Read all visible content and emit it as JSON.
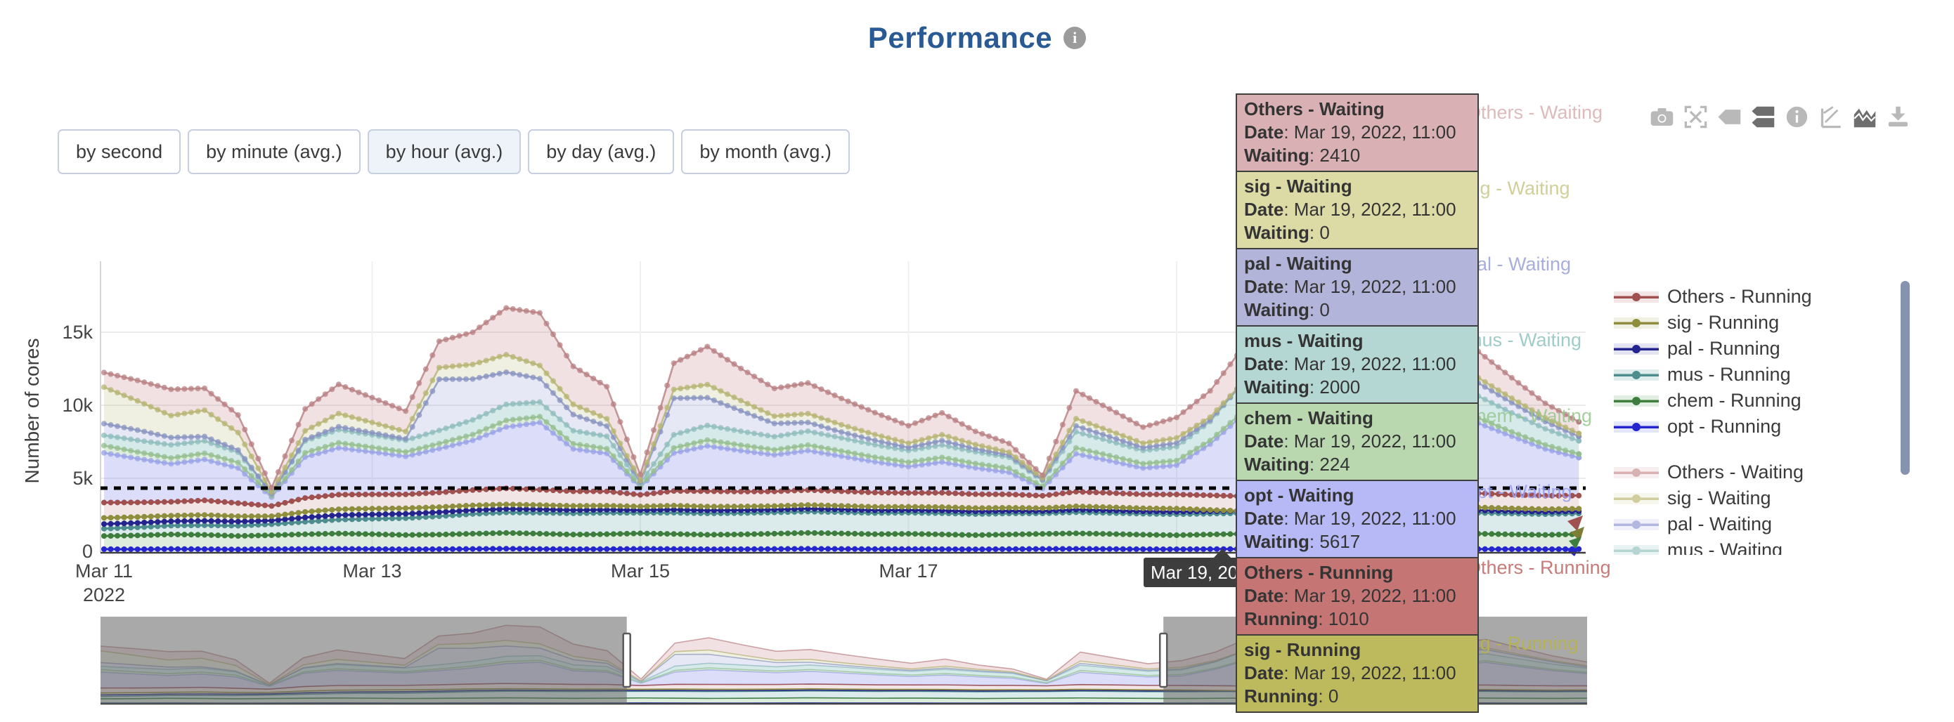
{
  "title": "Performance",
  "range_buttons": [
    {
      "id": "by-second",
      "label": "by second",
      "active": false
    },
    {
      "id": "by-minute",
      "label": "by minute (avg.)",
      "active": false
    },
    {
      "id": "by-hour",
      "label": "by hour (avg.)",
      "active": true
    },
    {
      "id": "by-day",
      "label": "by day (avg.)",
      "active": false
    },
    {
      "id": "by-month",
      "label": "by month (avg.)",
      "active": false
    }
  ],
  "modebar": [
    {
      "name": "camera-icon",
      "active": false
    },
    {
      "name": "autoscale-icon",
      "active": false
    },
    {
      "name": "hover-closest-icon",
      "active": false
    },
    {
      "name": "hover-compare-icon",
      "active": true
    },
    {
      "name": "info-icon",
      "active": false
    },
    {
      "name": "spikelines-icon",
      "active": false
    },
    {
      "name": "area-chart-icon",
      "active": true
    },
    {
      "name": "download-icon",
      "active": false
    }
  ],
  "hover": {
    "date": "Mar 19, 2022, 11:00",
    "x_tick_label": "Mar 19, 20",
    "hidden_tick": "Mar 19",
    "index": 34
  },
  "tooltip_panel": [
    {
      "series": "Others - Waiting",
      "date_label": "Date",
      "date": "Mar 19, 2022, 11:00",
      "metric": "Waiting",
      "value": "2410",
      "bg": "#d9b0b3"
    },
    {
      "series": "sig - Waiting",
      "date_label": "Date",
      "date": "Mar 19, 2022, 11:00",
      "metric": "Waiting",
      "value": "0",
      "bg": "#dcdaa5"
    },
    {
      "series": "pal - Waiting",
      "date_label": "Date",
      "date": "Mar 19, 2022, 11:00",
      "metric": "Waiting",
      "value": "0",
      "bg": "#b3b4d9"
    },
    {
      "series": "mus - Waiting",
      "date_label": "Date",
      "date": "Mar 19, 2022, 11:00",
      "metric": "Waiting",
      "value": "2000",
      "bg": "#b4d7d3"
    },
    {
      "series": "chem - Waiting",
      "date_label": "Date",
      "date": "Mar 19, 2022, 11:00",
      "metric": "Waiting",
      "value": "224",
      "bg": "#bad8b0"
    },
    {
      "series": "opt - Waiting",
      "date_label": "Date",
      "date": "Mar 19, 2022, 11:00",
      "metric": "Waiting",
      "value": "5617",
      "bg": "#b7b9f6"
    },
    {
      "series": "Others - Running",
      "date_label": "Date",
      "date": "Mar 19, 2022, 11:00",
      "metric": "Running",
      "value": "1010",
      "bg": "#c57573"
    },
    {
      "series": "sig - Running",
      "date_label": "Date",
      "date": "Mar 19, 2022, 11:00",
      "metric": "Running",
      "value": "0",
      "bg": "#bdba5e"
    }
  ],
  "series_end_labels": [
    {
      "text": "Others - Waiting",
      "color": "#d8aeb1",
      "opacity": 0.85
    },
    {
      "text": "sig - Waiting",
      "color": "#c9c788",
      "opacity": 0.85
    },
    {
      "text": "pal - Waiting",
      "color": "#9aa0d6",
      "opacity": 0.85
    },
    {
      "text": "mus - Waiting",
      "color": "#8fc3bf",
      "opacity": 0.85
    },
    {
      "text": "chem - Waiting",
      "color": "#96c78e",
      "opacity": 0.85
    },
    {
      "text": "opt - Waiting",
      "color": "#9aa0f0",
      "opacity": 0.9
    },
    {
      "text": "Others - Running",
      "color": "#c97b79",
      "opacity": 1
    },
    {
      "text": "sig - Running",
      "color": "#b5b254",
      "opacity": 1
    }
  ],
  "legend": {
    "running": [
      {
        "label": "Others - Running",
        "color": "#a15050",
        "fill": "rgba(161,80,80,0.15)"
      },
      {
        "label": "sig - Running",
        "color": "#8e8e3e",
        "fill": "rgba(150,150,60,0.15)"
      },
      {
        "label": "pal - Running",
        "color": "#24248f",
        "fill": "rgba(70,70,160,0.15)"
      },
      {
        "label": "mus - Running",
        "color": "#4d8d8d",
        "fill": "rgba(90,160,160,0.2)"
      },
      {
        "label": "chem - Running",
        "color": "#3d7d3d",
        "fill": "rgba(90,160,90,0.18)"
      },
      {
        "label": "opt - Running",
        "color": "#2626cf",
        "fill": "rgba(90,100,220,0.16)"
      }
    ],
    "waiting": [
      {
        "label": "Others - Waiting",
        "color": "#cf9fa1",
        "fill": "rgba(190,120,122,0.15)"
      },
      {
        "label": "sig - Waiting",
        "color": "#c5c387",
        "fill": "rgba(178,178,110,0.15)"
      },
      {
        "label": "pal - Waiting",
        "color": "#9fa6d8",
        "fill": "rgba(120,125,200,0.15)"
      },
      {
        "label": "mus - Waiting",
        "color": "#a3cbc7",
        "fill": "rgba(120,185,185,0.2)"
      }
    ]
  },
  "chart_data": {
    "type": "area",
    "title": "Performance",
    "ylabel": "Number of cores",
    "ylim": [
      0,
      19700
    ],
    "grid": true,
    "legend_position": "right",
    "threshold_value": 4327,
    "y_ticks": [
      {
        "label": "0",
        "value": 0
      },
      {
        "label": "5k",
        "value": 5000
      },
      {
        "label": "10k",
        "value": 10000
      },
      {
        "label": "15k",
        "value": 15000
      }
    ],
    "x_ticks": [
      {
        "label": "Mar 11",
        "sublabel": "2022",
        "day": 0
      },
      {
        "label": "Mar 13",
        "sublabel": "",
        "day": 2
      },
      {
        "label": "Mar 15",
        "sublabel": "",
        "day": 4
      },
      {
        "label": "Mar 17",
        "sublabel": "",
        "day": 6
      },
      {
        "label": "Mar 19",
        "sublabel": "",
        "day": 8
      }
    ],
    "x_step_days": 0.25,
    "hover_day": 8.5,
    "series": [
      {
        "name": "opt - Running",
        "group": "Running",
        "color": "#2626cf",
        "fill": "rgba(90,100,220,0.16)",
        "values": [
          150,
          140,
          160,
          150,
          130,
          145,
          160,
          170,
          155,
          140,
          150,
          165,
          180,
          160,
          150,
          155,
          170,
          160,
          145,
          150,
          160,
          175,
          165,
          155,
          160,
          150,
          140,
          155,
          165,
          170,
          160,
          150,
          145,
          155,
          160,
          165,
          155,
          150,
          160,
          170,
          165,
          155,
          150,
          145,
          155
        ]
      },
      {
        "name": "chem - Running",
        "group": "Running",
        "color": "#3d7d3d",
        "fill": "rgba(90,160,90,0.2)",
        "values": [
          900,
          950,
          1000,
          980,
          920,
          960,
          1010,
          1050,
          1020,
          980,
          1000,
          1040,
          1080,
          1050,
          1000,
          1020,
          1060,
          1030,
          990,
          1010,
          1050,
          1090,
          1060,
          1020,
          1040,
          1010,
          970,
          1000,
          1030,
          1060,
          1030,
          990,
          960,
          1000,
          1040,
          1070,
          1040,
          1000,
          1020,
          1060,
          1090,
          1050,
          1010,
          980,
          1020
        ]
      },
      {
        "name": "mus - Running",
        "group": "Running",
        "color": "#4d8d8d",
        "fill": "rgba(90,160,160,0.22)",
        "values": [
          500,
          550,
          600,
          650,
          700,
          750,
          850,
          950,
          1050,
          1150,
          1250,
          1350,
          1400,
          1430,
          1450,
          1460,
          1400,
          1450,
          1460,
          1455,
          1450,
          1455,
          1450,
          1445,
          1440,
          1445,
          1440,
          1435,
          1400,
          1440,
          1435,
          1430,
          1432,
          1420,
          1410,
          1420,
          1430,
          1425,
          1420,
          1415,
          1425,
          1430,
          1425,
          1420,
          1415
        ]
      },
      {
        "name": "pal - Running",
        "group": "Running",
        "color": "#24248f",
        "fill": "rgba(70,70,160,0.15)",
        "values": [
          320,
          310,
          300,
          310,
          290,
          250,
          300,
          310,
          305,
          300,
          280,
          260,
          240,
          230,
          220,
          210,
          190,
          210,
          200,
          195,
          190,
          195,
          190,
          185,
          180,
          185,
          180,
          175,
          160,
          180,
          175,
          170,
          172,
          160,
          150,
          160,
          170,
          165,
          160,
          155,
          165,
          170,
          165,
          160,
          155
        ]
      },
      {
        "name": "sig - Running",
        "group": "Running",
        "color": "#8e8e3e",
        "fill": "rgba(150,150,60,0.15)",
        "values": [
          420,
          400,
          380,
          400,
          360,
          300,
          380,
          400,
          390,
          380,
          350,
          330,
          310,
          300,
          290,
          280,
          250,
          280,
          270,
          260,
          250,
          260,
          250,
          240,
          230,
          240,
          230,
          220,
          200,
          230,
          220,
          210,
          215,
          100,
          0,
          150,
          200,
          190,
          180,
          170,
          190,
          200,
          190,
          180,
          170
        ]
      },
      {
        "name": "Others - Running",
        "group": "Running",
        "color": "#a15050",
        "fill": "rgba(161,80,80,0.15)",
        "values": [
          1050,
          1000,
          950,
          1000,
          900,
          700,
          950,
          1000,
          980,
          950,
          1000,
          1050,
          1100,
          1050,
          1000,
          980,
          800,
          1000,
          1050,
          1020,
          1000,
          1020,
          1000,
          980,
          950,
          980,
          950,
          920,
          850,
          1000,
          980,
          950,
          970,
          1000,
          1010,
          980,
          950,
          960,
          940,
          920,
          950,
          970,
          940,
          920,
          900
        ]
      },
      {
        "name": "opt - Waiting",
        "group": "Waiting",
        "color": "#9aa2e8",
        "fill": "rgba(130,135,235,0.28)",
        "values": [
          3400,
          3000,
          2600,
          2800,
          2400,
          600,
          2800,
          3200,
          2900,
          2600,
          3000,
          3400,
          4200,
          4600,
          2900,
          2600,
          500,
          2600,
          3100,
          2800,
          2500,
          2700,
          2400,
          2100,
          1800,
          2100,
          1800,
          1500,
          500,
          2600,
          2200,
          1800,
          2000,
          3500,
          5617,
          5000,
          4200,
          4600,
          4000,
          3500,
          4200,
          4800,
          4000,
          3200,
          2600
        ]
      },
      {
        "name": "chem - Waiting",
        "group": "Waiting",
        "color": "#94bd8f",
        "fill": "rgba(130,185,125,0.26)",
        "values": [
          500,
          450,
          400,
          420,
          380,
          100,
          300,
          350,
          320,
          300,
          350,
          400,
          450,
          400,
          350,
          320,
          80,
          350,
          400,
          380,
          350,
          380,
          350,
          320,
          300,
          320,
          300,
          280,
          150,
          400,
          350,
          300,
          320,
          250,
          224,
          300,
          350,
          320,
          300,
          280,
          320,
          350,
          300,
          280,
          250
        ]
      },
      {
        "name": "mus - Waiting",
        "group": "Waiting",
        "color": "#8fbcbc",
        "fill": "rgba(120,185,185,0.3)",
        "values": [
          700,
          800,
          900,
          850,
          700,
          150,
          800,
          900,
          850,
          800,
          900,
          1000,
          1100,
          1000,
          900,
          850,
          200,
          900,
          1000,
          950,
          900,
          950,
          900,
          850,
          800,
          850,
          800,
          750,
          400,
          1100,
          1000,
          900,
          950,
          1300,
          2000,
          1800,
          1500,
          1400,
          1300,
          1200,
          1400,
          1500,
          1300,
          1100,
          900
        ]
      },
      {
        "name": "pal - Waiting",
        "group": "Waiting",
        "color": "#8893c0",
        "fill": "rgba(120,125,200,0.18)",
        "values": [
          800,
          700,
          500,
          300,
          150,
          0,
          100,
          200,
          150,
          100,
          3500,
          2800,
          2200,
          1600,
          1100,
          700,
          100,
          2500,
          1900,
          1400,
          900,
          600,
          400,
          300,
          200,
          300,
          200,
          150,
          50,
          400,
          300,
          200,
          250,
          100,
          0,
          200,
          900,
          700,
          500,
          400,
          1200,
          900,
          700,
          500,
          300
        ]
      },
      {
        "name": "sig - Waiting",
        "group": "Waiting",
        "color": "#b5b472",
        "fill": "rgba(178,178,110,0.2)",
        "values": [
          2500,
          2000,
          1500,
          1800,
          1200,
          100,
          600,
          900,
          700,
          500,
          800,
          1000,
          1200,
          900,
          700,
          500,
          100,
          600,
          900,
          700,
          500,
          600,
          500,
          400,
          300,
          400,
          300,
          200,
          100,
          500,
          400,
          300,
          350,
          200,
          0,
          300,
          400,
          350,
          300,
          250,
          300,
          350,
          300,
          250,
          200
        ]
      },
      {
        "name": "Others - Waiting",
        "group": "Waiting",
        "color": "#b87f81",
        "fill": "rgba(190,120,122,0.22)",
        "values": [
          1000,
          1400,
          1800,
          1500,
          1200,
          300,
          1500,
          2000,
          1700,
          1400,
          1800,
          2200,
          3200,
          3600,
          2600,
          2200,
          400,
          1800,
          2600,
          2200,
          1900,
          2100,
          1800,
          1500,
          1200,
          1500,
          900,
          600,
          200,
          1900,
          1500,
          1100,
          1400,
          1800,
          2410,
          2000,
          1600,
          1800,
          1500,
          1200,
          1500,
          1800,
          1400,
          1000,
          800
        ]
      }
    ]
  },
  "slider": {
    "window_start": 0.354,
    "window_end": 0.715
  },
  "colors": {
    "title": "#2a5a94",
    "active_button_bg": "#eef3fa",
    "threshold_line": "#000000",
    "axis_text": "#444444",
    "tooltip_border": "#3f3f3f",
    "x_tooltip_bg": "#3d3d3d",
    "legend_scrollbar": "#8593ae"
  }
}
